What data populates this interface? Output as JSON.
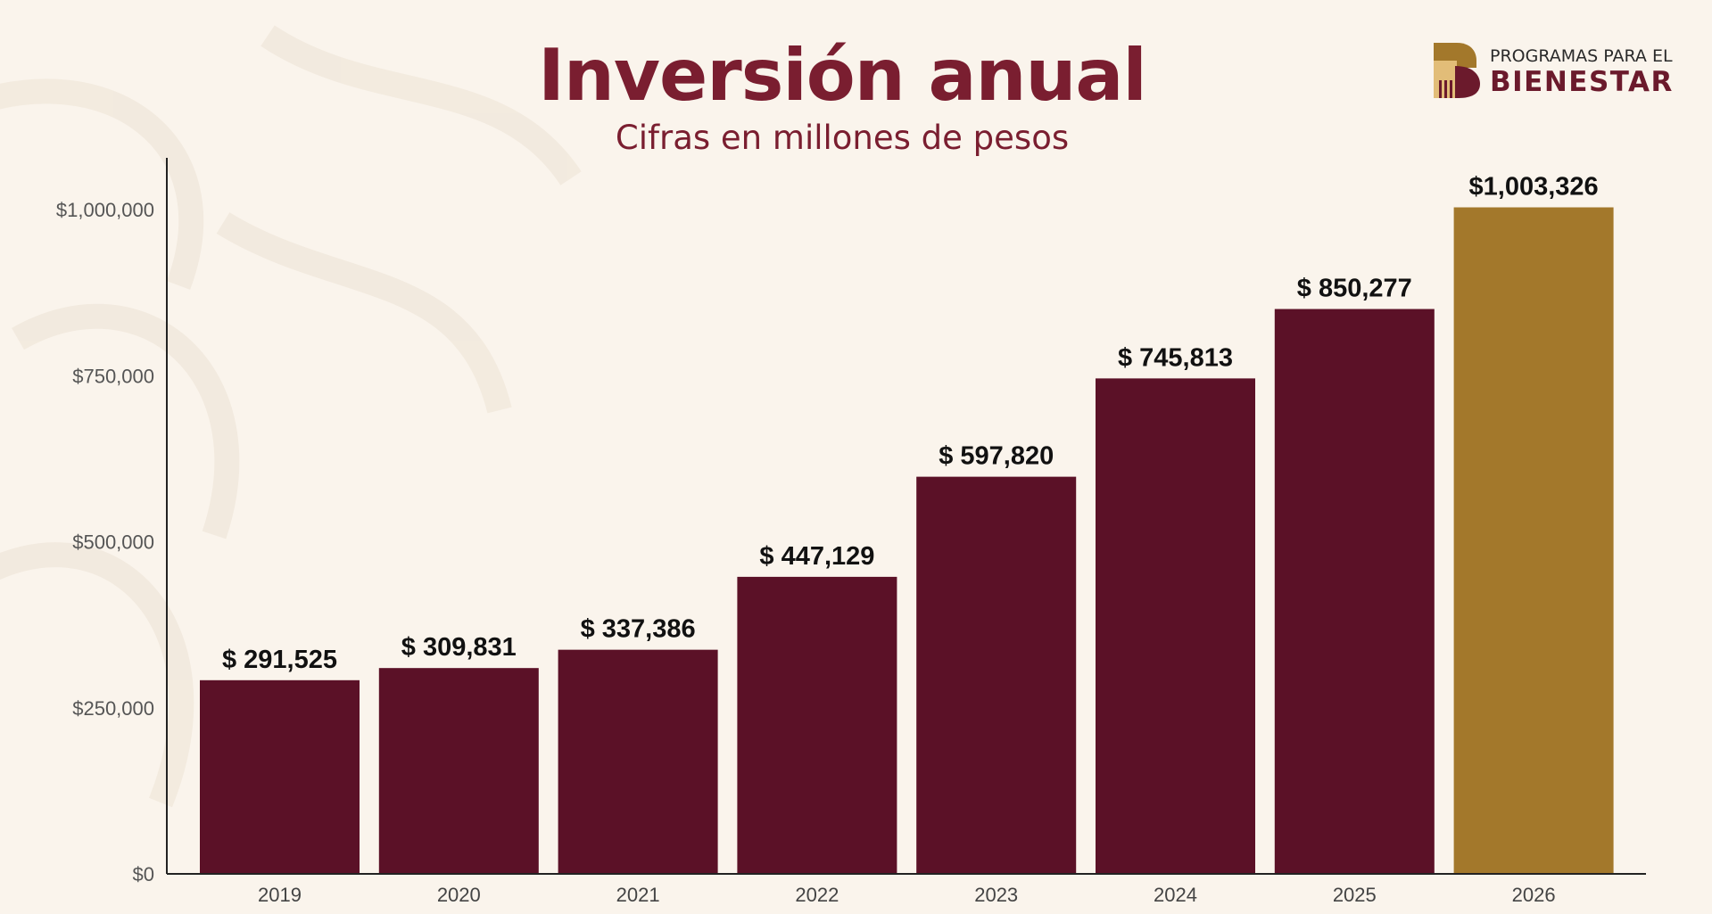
{
  "header": {
    "title": "Inversión anual",
    "subtitle": "Cifras en millones de pesos"
  },
  "logo": {
    "line1": "PROGRAMAS PARA EL",
    "line2": "BIENESTAR"
  },
  "colors": {
    "bar": "#5b1127",
    "highlight_bar": "#a3782b",
    "title": "#7a1e30",
    "background": "#faf4ec"
  },
  "chart_data": {
    "type": "bar",
    "title": "Inversión anual",
    "subtitle": "Cifras en millones de pesos",
    "categories": [
      "2019",
      "2020",
      "2021",
      "2022",
      "2023",
      "2024",
      "2025",
      "2026"
    ],
    "values": [
      291525,
      309831,
      337386,
      447129,
      597820,
      745813,
      850277,
      1003326
    ],
    "data_labels": [
      "$  291,525",
      "$  309,831",
      "$  337,386",
      "$  447,129",
      "$  597,820",
      "$  745,813",
      "$  850,277",
      "$1,003,326"
    ],
    "highlighted_category": "2026",
    "ylim": [
      0,
      1000000
    ],
    "yticks": [
      0,
      250000,
      500000,
      750000,
      1000000
    ],
    "ytick_labels": [
      "$0",
      "$250,000",
      "$500,000",
      "$750,000",
      "$1,000,000"
    ],
    "grid": false,
    "xlabel": "",
    "ylabel": ""
  }
}
